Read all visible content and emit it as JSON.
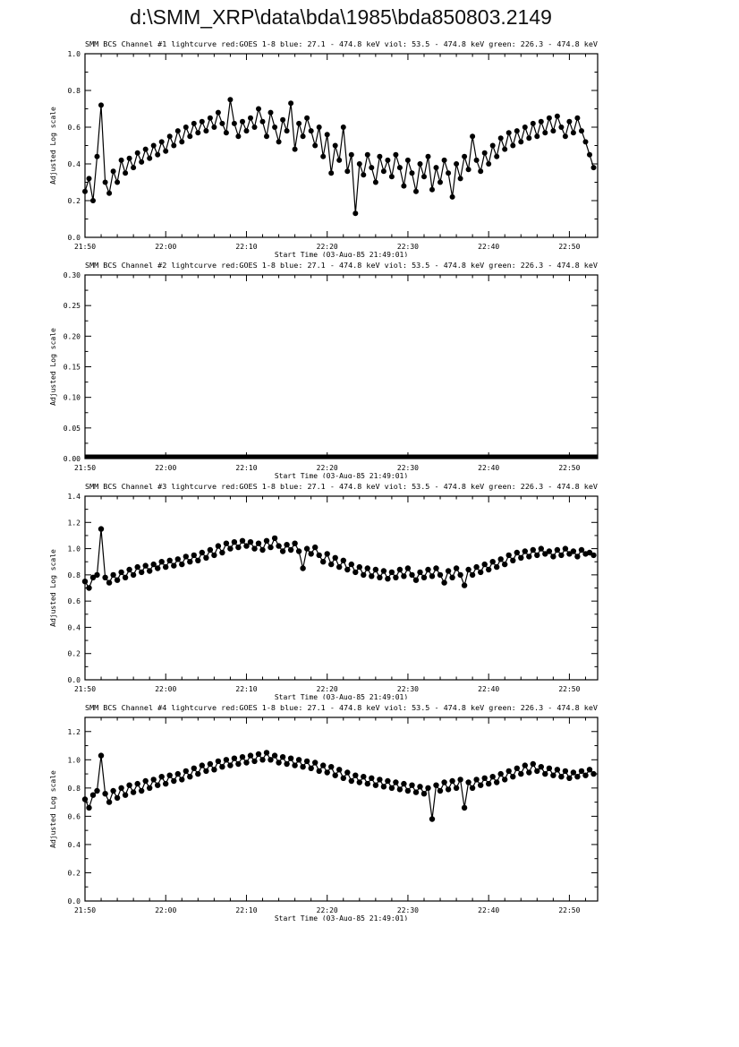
{
  "page_title": "d:\\SMM_XRP\\data\\bda\\1985\\bda850803.2149",
  "shared_axes": {
    "x_label": "Start Time (03-Aug-85 21:49:01)",
    "x_tick_labels": [
      "21:50",
      "22:00",
      "22:10",
      "22:20",
      "22:30",
      "22:40",
      "22:50"
    ],
    "x_tick_minutes": [
      0,
      10,
      20,
      30,
      40,
      50,
      60
    ],
    "x_range_minutes": [
      0,
      63.5
    ],
    "y_label": "Adjusted Log scale",
    "line_color": "#000000"
  },
  "chart_data": [
    {
      "type": "line",
      "title": "SMM BCS Channel #1 lightcurve  red:GOES 1-8  blue: 27.1 - 474.8 keV  viol: 53.5 - 474.8 keV  green: 226.3 - 474.8 keV",
      "xlabel": "Start Time (03-Aug-85 21:49:01)",
      "ylabel": "Adjusted Log scale",
      "ylim": [
        0,
        1.0
      ],
      "y_tick_labels": [
        "0.0",
        "0.2",
        "0.4",
        "0.6",
        "0.8",
        "1.0"
      ],
      "x_start_min": 0,
      "x_step_min": 0.5,
      "marker_radius": 3.0,
      "color": "#000000",
      "values": [
        0.25,
        0.32,
        0.2,
        0.44,
        0.72,
        0.3,
        0.24,
        0.36,
        0.3,
        0.42,
        0.35,
        0.43,
        0.38,
        0.46,
        0.41,
        0.48,
        0.43,
        0.5,
        0.45,
        0.52,
        0.47,
        0.55,
        0.5,
        0.58,
        0.52,
        0.6,
        0.55,
        0.62,
        0.57,
        0.63,
        0.58,
        0.65,
        0.6,
        0.68,
        0.62,
        0.57,
        0.75,
        0.62,
        0.55,
        0.63,
        0.58,
        0.65,
        0.6,
        0.7,
        0.63,
        0.55,
        0.68,
        0.6,
        0.52,
        0.64,
        0.58,
        0.73,
        0.48,
        0.62,
        0.55,
        0.65,
        0.58,
        0.5,
        0.6,
        0.44,
        0.56,
        0.35,
        0.5,
        0.42,
        0.6,
        0.36,
        0.45,
        0.13,
        0.4,
        0.34,
        0.45,
        0.38,
        0.3,
        0.44,
        0.36,
        0.42,
        0.33,
        0.45,
        0.38,
        0.28,
        0.42,
        0.35,
        0.25,
        0.4,
        0.33,
        0.44,
        0.26,
        0.38,
        0.3,
        0.42,
        0.35,
        0.22,
        0.4,
        0.32,
        0.44,
        0.37,
        0.55,
        0.42,
        0.36,
        0.46,
        0.4,
        0.5,
        0.44,
        0.54,
        0.48,
        0.57,
        0.5,
        0.58,
        0.52,
        0.6,
        0.54,
        0.62,
        0.55,
        0.63,
        0.57,
        0.65,
        0.58,
        0.66,
        0.6,
        0.55,
        0.63,
        0.57,
        0.65,
        0.58,
        0.52,
        0.45,
        0.38
      ]
    },
    {
      "type": "line",
      "title": "SMM BCS Channel #2 lightcurve  red:GOES 1-8  blue: 27.1 - 474.8 keV  viol: 53.5 - 474.8 keV  green: 226.3 - 474.8 keV",
      "xlabel": "Start Time (03-Aug-85 21:49:01)",
      "ylabel": "Adjusted Log scale",
      "ylim": [
        0,
        0.3
      ],
      "y_tick_labels": [
        "0.00",
        "0.05",
        "0.10",
        "0.15",
        "0.20",
        "0.25",
        "0.30"
      ],
      "x_start_min": 0,
      "x_step_min": 0.5,
      "flat_value": 0.0,
      "flat_line_width": 5,
      "color": "#000000",
      "values": []
    },
    {
      "type": "line",
      "title": "SMM BCS Channel #3 lightcurve  red:GOES 1-8  blue: 27.1 - 474.8 keV  viol: 53.5 - 474.8 keV  green: 226.3 - 474.8 keV",
      "xlabel": "Start Time (03-Aug-85 21:49:01)",
      "ylabel": "Adjusted Log scale",
      "ylim": [
        0,
        1.4
      ],
      "y_tick_labels": [
        "0.0",
        "0.2",
        "0.4",
        "0.6",
        "0.8",
        "1.0",
        "1.2",
        "1.4"
      ],
      "x_start_min": 0,
      "x_step_min": 0.5,
      "marker_radius": 3.2,
      "color": "#000000",
      "values": [
        0.75,
        0.7,
        0.78,
        0.8,
        1.15,
        0.78,
        0.74,
        0.8,
        0.76,
        0.82,
        0.78,
        0.84,
        0.8,
        0.86,
        0.82,
        0.87,
        0.83,
        0.88,
        0.85,
        0.9,
        0.86,
        0.91,
        0.87,
        0.92,
        0.88,
        0.94,
        0.9,
        0.95,
        0.91,
        0.97,
        0.93,
        0.99,
        0.95,
        1.02,
        0.97,
        1.04,
        1.0,
        1.05,
        1.01,
        1.06,
        1.02,
        1.05,
        1.0,
        1.04,
        0.99,
        1.06,
        1.01,
        1.08,
        1.02,
        0.98,
        1.03,
        0.99,
        1.04,
        0.98,
        0.85,
        1.0,
        0.96,
        1.01,
        0.95,
        0.9,
        0.96,
        0.88,
        0.93,
        0.86,
        0.91,
        0.84,
        0.88,
        0.82,
        0.86,
        0.8,
        0.85,
        0.79,
        0.84,
        0.78,
        0.83,
        0.77,
        0.82,
        0.78,
        0.84,
        0.79,
        0.85,
        0.8,
        0.76,
        0.82,
        0.78,
        0.84,
        0.79,
        0.85,
        0.8,
        0.74,
        0.83,
        0.78,
        0.85,
        0.8,
        0.72,
        0.84,
        0.8,
        0.86,
        0.82,
        0.88,
        0.84,
        0.9,
        0.86,
        0.92,
        0.88,
        0.95,
        0.91,
        0.97,
        0.93,
        0.98,
        0.94,
        0.99,
        0.95,
        1.0,
        0.96,
        0.98,
        0.94,
        0.99,
        0.95,
        1.0,
        0.96,
        0.98,
        0.94,
        0.99,
        0.96,
        0.97,
        0.95
      ]
    },
    {
      "type": "line",
      "title": "SMM BCS Channel #4 lightcurve  red:GOES 1-8  blue: 27.1 - 474.8 keV  viol: 53.5 - 474.8 keV  green: 226.3 - 474.8 keV",
      "xlabel": "Start Time (03-Aug-85 21:49:01)",
      "ylabel": "Adjusted Log scale",
      "ylim": [
        0,
        1.3
      ],
      "y_tick_labels": [
        "0.0",
        "0.2",
        "0.4",
        "0.6",
        "0.8",
        "1.0",
        "1.2"
      ],
      "x_start_min": 0,
      "x_step_min": 0.5,
      "marker_radius": 3.2,
      "color": "#000000",
      "values": [
        0.72,
        0.66,
        0.75,
        0.78,
        1.03,
        0.76,
        0.7,
        0.78,
        0.73,
        0.8,
        0.75,
        0.82,
        0.77,
        0.83,
        0.78,
        0.85,
        0.8,
        0.86,
        0.82,
        0.88,
        0.83,
        0.89,
        0.85,
        0.9,
        0.86,
        0.92,
        0.88,
        0.94,
        0.9,
        0.96,
        0.92,
        0.97,
        0.93,
        0.99,
        0.95,
        1.0,
        0.96,
        1.01,
        0.97,
        1.02,
        0.98,
        1.03,
        0.99,
        1.04,
        1.0,
        1.05,
        1.0,
        1.03,
        0.98,
        1.02,
        0.97,
        1.01,
        0.96,
        1.0,
        0.95,
        0.99,
        0.94,
        0.98,
        0.92,
        0.96,
        0.91,
        0.95,
        0.89,
        0.93,
        0.87,
        0.91,
        0.85,
        0.89,
        0.84,
        0.88,
        0.83,
        0.87,
        0.82,
        0.86,
        0.81,
        0.85,
        0.8,
        0.84,
        0.79,
        0.83,
        0.78,
        0.82,
        0.77,
        0.81,
        0.76,
        0.8,
        0.58,
        0.82,
        0.78,
        0.84,
        0.79,
        0.85,
        0.8,
        0.86,
        0.66,
        0.84,
        0.8,
        0.86,
        0.82,
        0.87,
        0.83,
        0.88,
        0.84,
        0.9,
        0.86,
        0.92,
        0.88,
        0.94,
        0.9,
        0.96,
        0.91,
        0.97,
        0.92,
        0.95,
        0.9,
        0.94,
        0.89,
        0.93,
        0.88,
        0.92,
        0.87,
        0.91,
        0.88,
        0.92,
        0.89,
        0.93,
        0.9
      ]
    }
  ]
}
